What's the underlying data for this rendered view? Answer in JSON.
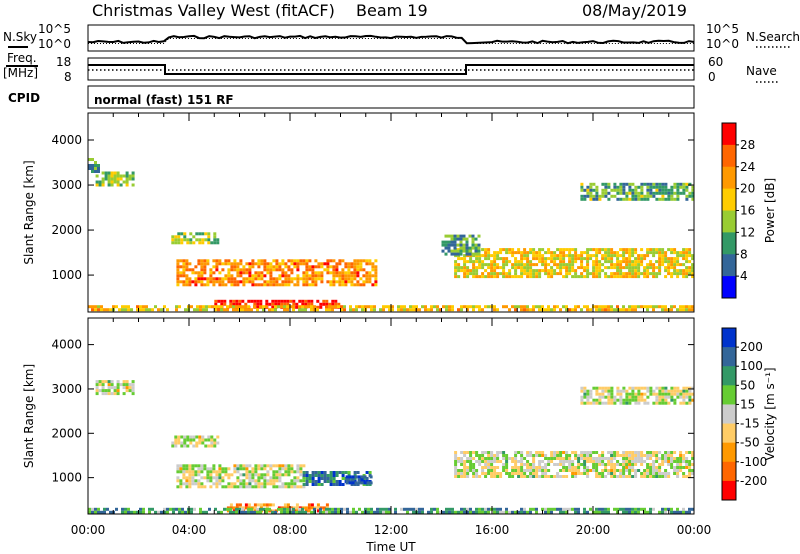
{
  "header": {
    "station": "Christmas Valley West (fitACF)",
    "beam": "Beam 19",
    "date": "08/May/2019"
  },
  "left_labels": {
    "nsky": "N.Sky",
    "freq1": "Freq.",
    "freq2": "[MHz]",
    "cpid": "CPID"
  },
  "right_labels": {
    "nsearch": "N.Search",
    "nave": "Nave"
  },
  "noise_panel": {
    "left_ticks": [
      "10^5",
      "10^0"
    ],
    "right_ticks": [
      "10^5",
      "10^0"
    ]
  },
  "freq_panel": {
    "left_ticks": [
      "18",
      "8"
    ],
    "right_ticks": [
      "60",
      "0"
    ]
  },
  "cpid_text": "normal (fast) 151 RF",
  "chart_data": [
    {
      "type": "heatmap",
      "name": "power",
      "ylabel": "Slant Range [km]",
      "xlabel": "",
      "x_ticks": [
        "00:00",
        "04:00",
        "08:00",
        "12:00",
        "16:00",
        "20:00",
        "00:00"
      ],
      "y_ticks": [
        1000,
        2000,
        3000,
        4000
      ],
      "ylim": [
        180,
        4600
      ],
      "colorbar_label": "Power [dB]",
      "colorbar_ticks": [
        "28",
        "24",
        "20",
        "16",
        "12",
        "8",
        "4"
      ],
      "colorbar_colors": [
        "#ff0000",
        "#ff6600",
        "#ff9900",
        "#ffcc00",
        "#99cc33",
        "#339966",
        "#336699",
        "#0000ff"
      ],
      "regions": [
        {
          "t0": 0.3,
          "t1": 1.8,
          "r0": 3000,
          "r1": 3300,
          "level": 0.45
        },
        {
          "t0": 0.0,
          "t1": 0.4,
          "r0": 3300,
          "r1": 3600,
          "level": 0.3
        },
        {
          "t0": 3.3,
          "t1": 5.2,
          "r0": 1700,
          "r1": 1950,
          "level": 0.45
        },
        {
          "t0": 3.5,
          "t1": 11.4,
          "r0": 800,
          "r1": 1350,
          "level": 0.72
        },
        {
          "t0": 5.0,
          "t1": 10.0,
          "r0": 300,
          "r1": 450,
          "level": 0.95
        },
        {
          "t0": 14.5,
          "t1": 24.0,
          "r0": 1000,
          "r1": 1600,
          "level": 0.55
        },
        {
          "t0": 14.0,
          "t1": 15.5,
          "r0": 1450,
          "r1": 1900,
          "level": 0.3
        },
        {
          "t0": 19.5,
          "t1": 24.0,
          "r0": 2700,
          "r1": 3050,
          "level": 0.35
        },
        {
          "t0": 0.0,
          "t1": 24.0,
          "r0": 200,
          "r1": 330,
          "level": 0.6
        }
      ]
    },
    {
      "type": "heatmap",
      "name": "velocity",
      "ylabel": "Slant Range [km]",
      "xlabel": "Time UT",
      "x_ticks": [
        "00:00",
        "04:00",
        "08:00",
        "12:00",
        "16:00",
        "20:00",
        "00:00"
      ],
      "y_ticks": [
        1000,
        2000,
        3000,
        4000
      ],
      "ylim": [
        180,
        4600
      ],
      "colorbar_label": "Velocity [m s⁻¹]",
      "colorbar_ticks": [
        "200",
        "100",
        "50",
        "15",
        "-15",
        "-50",
        "-100",
        "-200"
      ],
      "colorbar_colors": [
        "#0033cc",
        "#336699",
        "#339966",
        "#66cc33",
        "#cccccc",
        "#ffcc66",
        "#ff9900",
        "#ff6600",
        "#ff0000"
      ],
      "regions": [
        {
          "t0": 0.3,
          "t1": 1.8,
          "r0": 2900,
          "r1": 3200,
          "level": 0.5
        },
        {
          "t0": 3.3,
          "t1": 5.2,
          "r0": 1700,
          "r1": 1950,
          "level": 0.5
        },
        {
          "t0": 3.5,
          "t1": 8.5,
          "r0": 800,
          "r1": 1300,
          "level": 0.5
        },
        {
          "t0": 8.5,
          "t1": 11.2,
          "r0": 850,
          "r1": 1150,
          "level": 0.2
        },
        {
          "t0": 10.2,
          "t1": 11.2,
          "r0": 850,
          "r1": 1050,
          "level": 0.05
        },
        {
          "t0": 5.5,
          "t1": 9.5,
          "r0": 280,
          "r1": 420,
          "level": 0.75
        },
        {
          "t0": 14.5,
          "t1": 24.0,
          "r0": 1000,
          "r1": 1600,
          "level": 0.5
        },
        {
          "t0": 19.5,
          "t1": 24.0,
          "r0": 2700,
          "r1": 3050,
          "level": 0.5
        },
        {
          "t0": 0.0,
          "t1": 24.0,
          "r0": 200,
          "r1": 320,
          "level": 0.3
        }
      ]
    }
  ]
}
